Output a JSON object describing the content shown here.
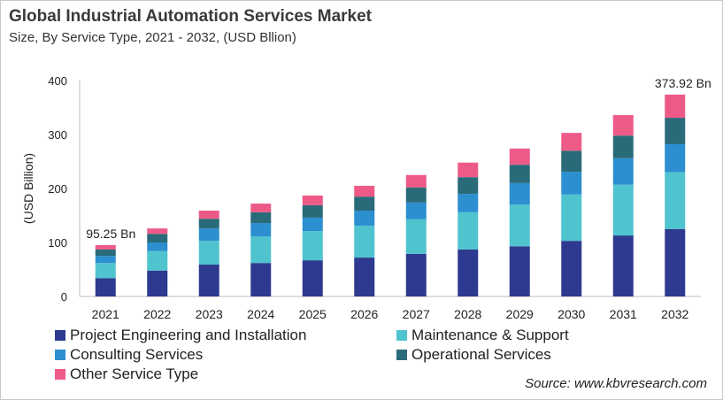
{
  "chart_data": {
    "type": "bar",
    "stacked": true,
    "title": "Global Industrial Automation Services Market",
    "subtitle": "Size, By Service Type, 2021 - 2032, (USD Bllion)",
    "xlabel": "",
    "ylabel": "(USD Billion)",
    "ylim": [
      0,
      400
    ],
    "yticks": [
      0,
      100,
      200,
      300,
      400
    ],
    "grid": false,
    "legend_position": "bottom",
    "categories": [
      "2021",
      "2022",
      "2023",
      "2024",
      "2025",
      "2026",
      "2027",
      "2028",
      "2029",
      "2030",
      "2031",
      "2032"
    ],
    "series": [
      {
        "name": "Project Engineering and Installation",
        "color": "#2E3A8F",
        "values": [
          34,
          48,
          59,
          62,
          67,
          72,
          79,
          87,
          93,
          103,
          113,
          125
        ]
      },
      {
        "name": "Maintenance & Support",
        "color": "#4FC4CE",
        "values": [
          28,
          36,
          44,
          49,
          54,
          59,
          64,
          69,
          77,
          86,
          94,
          105
        ]
      },
      {
        "name": "Consulting Services",
        "color": "#2B8FD0",
        "values": [
          13,
          16,
          23,
          25,
          25,
          28,
          31,
          34,
          40,
          42,
          49,
          52
        ]
      },
      {
        "name": "Operational Services",
        "color": "#2A6B7A",
        "values": [
          12,
          16,
          18,
          20,
          23,
          26,
          28,
          31,
          34,
          39,
          42,
          49
        ]
      },
      {
        "name": "Other Service Type",
        "color": "#EE5A87",
        "values": [
          8.25,
          10,
          15,
          16,
          18,
          20,
          23,
          27,
          30,
          33,
          38,
          42.92
        ]
      }
    ],
    "annotations": [
      {
        "category": "2021",
        "text": "95.25 Bn"
      },
      {
        "category": "2032",
        "text": "373.92 Bn"
      }
    ],
    "source": "Source: www.kbvresearch.com"
  }
}
